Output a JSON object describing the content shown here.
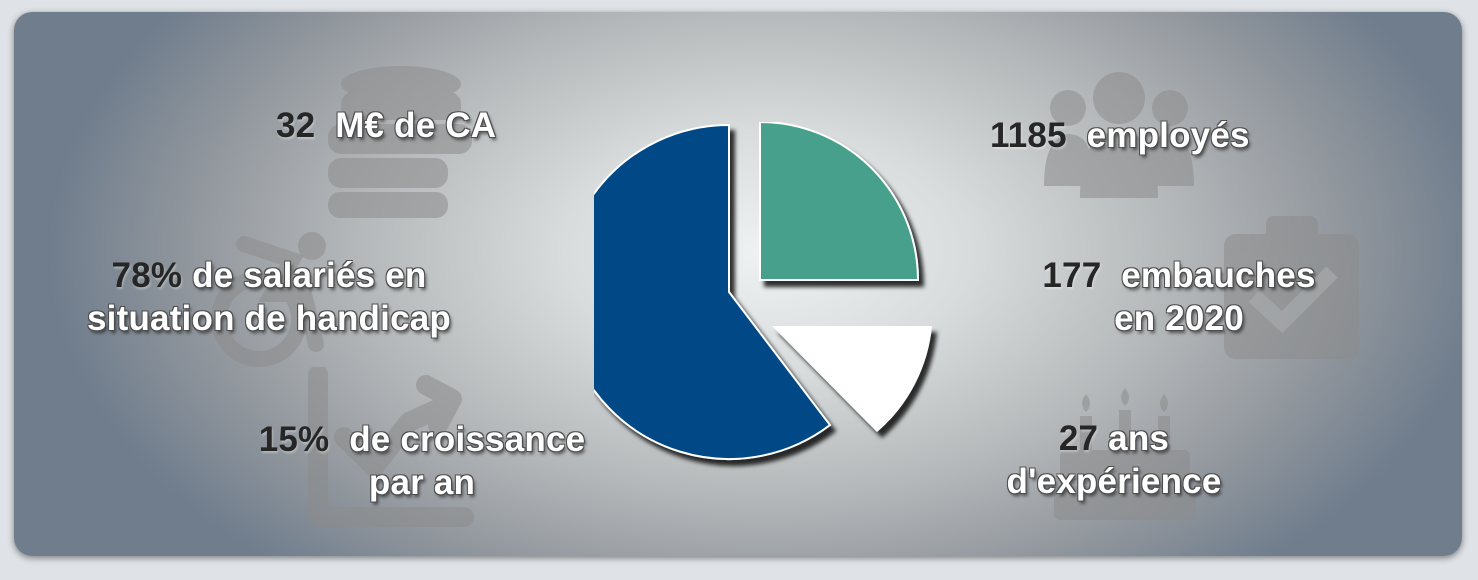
{
  "stats": {
    "revenue": {
      "value": "32",
      "label": "M€ de CA",
      "icon": "coins-stack-icon"
    },
    "handicap": {
      "value": "78%",
      "label_line1": "de salariés en",
      "label_line2": "situation de handicap",
      "icon": "wheelchair-icon"
    },
    "growth": {
      "value": "15%",
      "label_line1": "de croissance",
      "label_line2": "par an",
      "icon": "growth-chart-icon"
    },
    "employees": {
      "value": "1185",
      "label": "employés",
      "icon": "people-group-icon"
    },
    "hires": {
      "value": "177",
      "label_line1": "embauches",
      "label_line2": "en 2020",
      "icon": "clipboard-check-icon"
    },
    "experience": {
      "value": "27",
      "label_line1": "ans",
      "label_line2": "d'expérience",
      "icon": "birthday-cake-icon"
    }
  },
  "colors": {
    "pie_blue": "#054a86",
    "pie_green": "#46a08b",
    "pie_white": "#ffffff",
    "number_text": "#262626",
    "label_text": "#ffffff",
    "icon_grey": "#8c8c8c"
  }
}
